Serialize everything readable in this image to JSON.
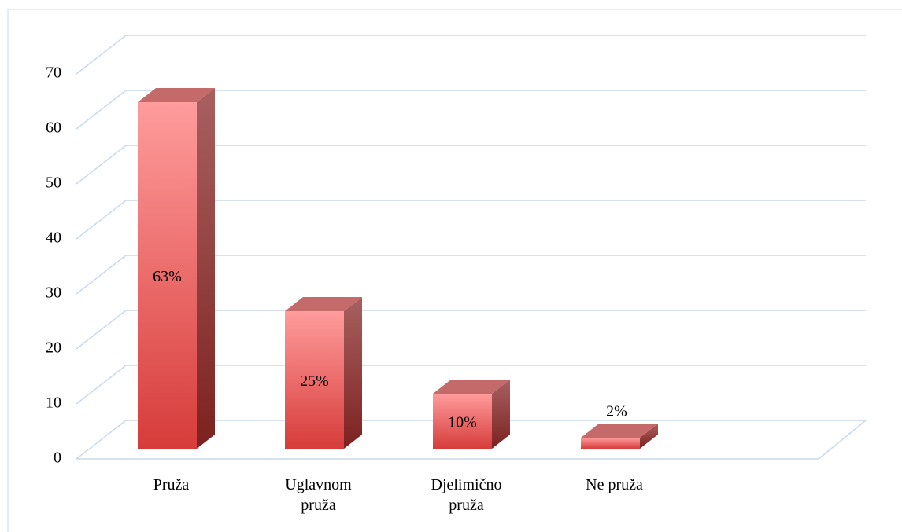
{
  "chart_data": {
    "type": "bar3d",
    "categories": [
      "Pruža",
      "Uglavnom pruža",
      "Djelimično pruža",
      "Ne pruža"
    ],
    "values": [
      63,
      25,
      10,
      2
    ],
    "value_labels": [
      "63%",
      "25%",
      "10%",
      "2%"
    ],
    "color": "#e25555",
    "ylim": [
      0,
      70
    ],
    "yticks": [
      0,
      10,
      20,
      30,
      40,
      50,
      60,
      70
    ],
    "grid": true
  }
}
